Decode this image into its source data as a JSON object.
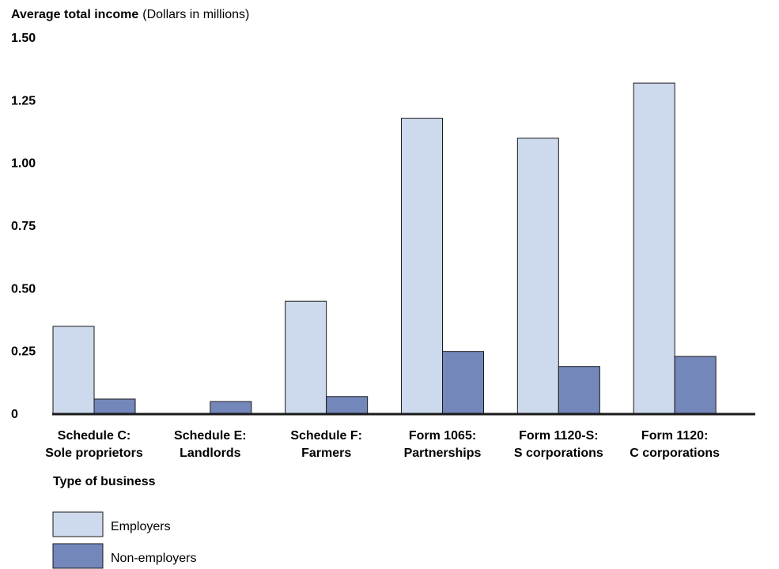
{
  "chart_data": {
    "type": "bar",
    "title": "Average total income",
    "title_unit": "(Dollars in millions)",
    "xlabel": "Type of business",
    "ylabel": "Average total income",
    "ylim": [
      0,
      1.5
    ],
    "yticks": [
      {
        "value": 0,
        "label": "0"
      },
      {
        "value": 0.25,
        "label": "0.25"
      },
      {
        "value": 0.5,
        "label": "0.50"
      },
      {
        "value": 0.75,
        "label": "0.75"
      },
      {
        "value": 1.0,
        "label": "1.00"
      },
      {
        "value": 1.25,
        "label": "1.25"
      },
      {
        "value": 1.5,
        "label": "1.50"
      }
    ],
    "categories": [
      [
        "Schedule C:",
        "Sole proprietors"
      ],
      [
        "Schedule E:",
        "Landlords"
      ],
      [
        "Schedule F:",
        "Farmers"
      ],
      [
        "Form 1065:",
        "Partnerships"
      ],
      [
        "Form 1120-S:",
        "S corporations"
      ],
      [
        "Form 1120:",
        "C corporations"
      ]
    ],
    "series": [
      {
        "name": "Employers",
        "color": "#cdd9ec",
        "values": [
          0.35,
          0,
          0.45,
          1.18,
          1.1,
          1.32
        ]
      },
      {
        "name": "Non-employers",
        "color": "#7487bb",
        "values": [
          0.06,
          0.05,
          0.07,
          0.25,
          0.19,
          0.23
        ]
      }
    ],
    "grid": false,
    "legend_position": "bottom-left"
  }
}
